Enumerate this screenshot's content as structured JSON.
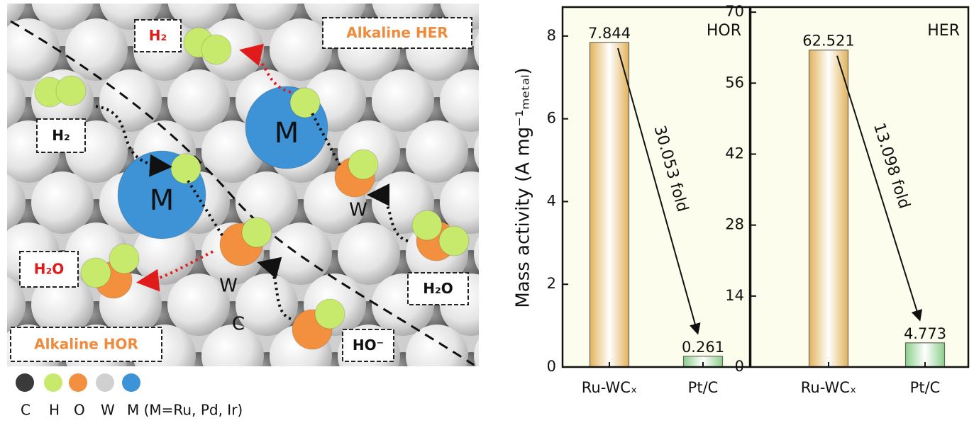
{
  "illustration": {
    "labels": [
      {
        "text": "H₂",
        "color": "#e01b1b"
      },
      {
        "text": "Alkaline HER",
        "color": "#f08a3c"
      },
      {
        "text": "H₂",
        "color": "#111111"
      },
      {
        "text": "H₂O",
        "color": "#e01b1b"
      },
      {
        "text": "H₂O",
        "color": "#111111"
      },
      {
        "text": "HO⁻",
        "color": "#111111"
      },
      {
        "text": "Alkaline HOR",
        "color": "#f08a3c"
      }
    ],
    "atoms": [
      "M",
      "M",
      "W",
      "W",
      "C"
    ],
    "legend": [
      {
        "label": "C",
        "color": "#3a3a3a"
      },
      {
        "label": "H",
        "color": "#c8ea6c"
      },
      {
        "label": "O",
        "color": "#f3903f"
      },
      {
        "label": "W",
        "color": "#d0d0d0"
      },
      {
        "label": "M (M=Ru, Pd, Ir)",
        "color": "#3e92d6"
      }
    ]
  },
  "chart_data": [
    {
      "type": "bar",
      "title": "HOR",
      "y_label": "Mass activity (A mg⁻¹ₘₑₜₐₗ)",
      "categories": [
        "Ru-WCₓ",
        "Pt/C"
      ],
      "values": [
        7.844,
        0.261
      ],
      "colors": [
        "#e2b35a",
        "#8ccf8c"
      ],
      "ylim": [
        0,
        8.7
      ],
      "yticks": [
        0,
        2,
        4,
        6,
        8
      ],
      "annotation": "30.053 fold"
    },
    {
      "type": "bar",
      "title": "HER",
      "categories": [
        "Ru-WCₓ",
        "Pt/C"
      ],
      "values": [
        62.521,
        4.773
      ],
      "colors": [
        "#e2b35a",
        "#8ccf8c"
      ],
      "ylim": [
        0,
        71
      ],
      "yticks": [
        0,
        14,
        28,
        42,
        56,
        70
      ],
      "annotation": "13.098 fold"
    }
  ]
}
